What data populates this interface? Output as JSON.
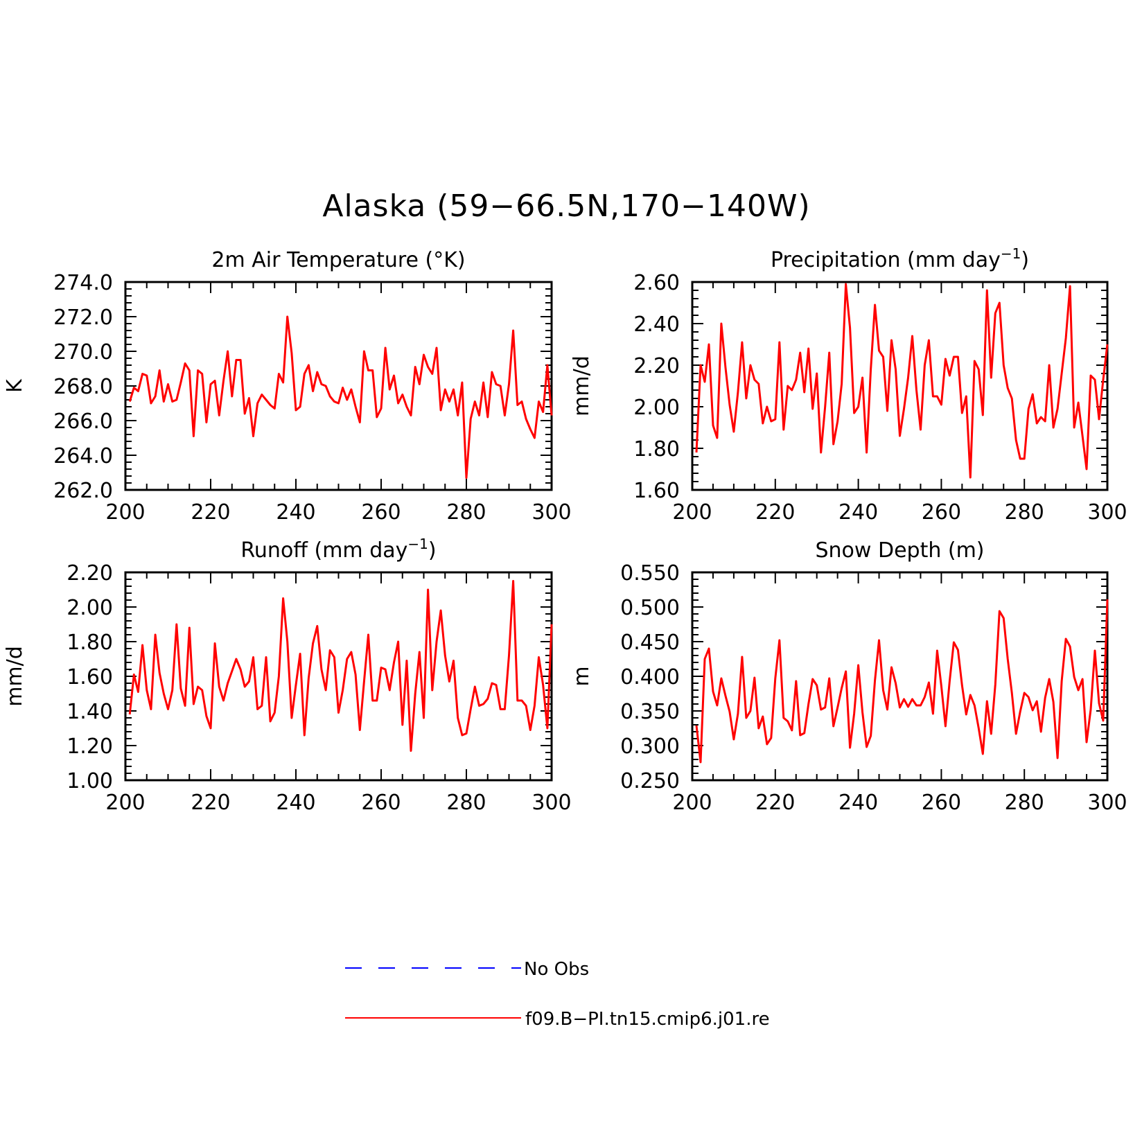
{
  "title": "Alaska (59−66.5N,170−140W)",
  "colors": {
    "model": "#ff0000",
    "obs": "#0000ff",
    "axis": "#000000"
  },
  "legend": [
    {
      "label": "No Obs",
      "color": "#0000ff",
      "style": "dashed"
    },
    {
      "label": "f09.B−PI.tn15.cmip6.j01.re",
      "color": "#ff0000",
      "style": "solid"
    }
  ],
  "chart_data": [
    {
      "type": "line",
      "title_main": "2m Air Temperature (°K)",
      "title_sup": "",
      "title_tail": "",
      "xlabel": "",
      "ylabel": "K",
      "xlim": [
        200,
        300
      ],
      "ylim": [
        262.0,
        274.0
      ],
      "xticks": [
        200,
        220,
        240,
        260,
        280,
        300
      ],
      "yticks": [
        "262.0",
        "264.0",
        "266.0",
        "268.0",
        "270.0",
        "272.0",
        "274.0"
      ],
      "x_start": 201,
      "series": [
        {
          "values": [
            267.1,
            267.9,
            267.7,
            268.7,
            268.6,
            267.0,
            267.4,
            268.9,
            267.1,
            268.1,
            267.1,
            267.2,
            268.2,
            269.3,
            268.9,
            265.1,
            268.9,
            268.7,
            265.9,
            268.1,
            268.3,
            266.3,
            268.3,
            270.0,
            267.4,
            269.5,
            269.5,
            266.4,
            267.3,
            265.1,
            267.0,
            267.5,
            267.2,
            266.9,
            266.7,
            268.7,
            268.2,
            272.0,
            269.9,
            266.6,
            266.8,
            268.7,
            269.2,
            267.7,
            268.8,
            268.1,
            268.0,
            267.4,
            267.1,
            267.0,
            267.9,
            267.2,
            267.8,
            266.8,
            265.9,
            270.0,
            268.9,
            268.9,
            266.2,
            266.7,
            270.2,
            267.8,
            268.6,
            267.0,
            267.5,
            266.8,
            266.3,
            269.1,
            268.1,
            269.8,
            269.1,
            268.7,
            270.2,
            266.6,
            267.8,
            267.1,
            267.8,
            266.3,
            268.2,
            262.7,
            266.1,
            267.1,
            266.3,
            268.2,
            266.2,
            268.8,
            268.1,
            268.0,
            266.3,
            268.1,
            271.2,
            266.9,
            267.1,
            266.1,
            265.5,
            265.0,
            267.1,
            266.5,
            269.2,
            266.3
          ]
        }
      ]
    },
    {
      "type": "line",
      "title_main": "Precipitation (mm day",
      "title_sup": "−1",
      "title_tail": ")",
      "xlabel": "",
      "ylabel": "mm/d",
      "xlim": [
        200,
        300
      ],
      "ylim": [
        1.6,
        2.6
      ],
      "xticks": [
        200,
        220,
        240,
        260,
        280,
        300
      ],
      "yticks": [
        "1.60",
        "1.80",
        "2.00",
        "2.20",
        "2.40",
        "2.60"
      ],
      "x_start": 201,
      "series": [
        {
          "values": [
            1.78,
            2.2,
            2.12,
            2.3,
            1.91,
            1.85,
            2.4,
            2.19,
            2.01,
            1.88,
            2.07,
            2.31,
            2.04,
            2.2,
            2.13,
            2.11,
            1.92,
            2.0,
            1.93,
            1.94,
            2.31,
            1.89,
            2.1,
            2.08,
            2.13,
            2.26,
            2.07,
            2.28,
            1.99,
            2.16,
            1.78,
            2.0,
            2.26,
            1.82,
            1.93,
            2.11,
            2.59,
            2.38,
            1.97,
            2.0,
            2.14,
            1.78,
            2.18,
            2.49,
            2.27,
            2.24,
            1.98,
            2.32,
            2.18,
            1.86,
            1.99,
            2.14,
            2.34,
            2.08,
            1.89,
            2.2,
            2.32,
            2.05,
            2.05,
            2.01,
            2.23,
            2.15,
            2.24,
            2.24,
            1.97,
            2.05,
            1.66,
            2.22,
            2.18,
            1.96,
            2.56,
            2.14,
            2.45,
            2.5,
            2.2,
            2.09,
            2.04,
            1.84,
            1.75,
            1.75,
            1.99,
            2.06,
            1.92,
            1.95,
            1.93,
            2.2,
            1.9,
            1.99,
            2.16,
            2.33,
            2.58,
            1.9,
            2.02,
            1.86,
            1.7,
            2.15,
            2.13,
            1.94,
            2.13,
            2.3
          ]
        }
      ]
    },
    {
      "type": "line",
      "title_main": "Runoff (mm day",
      "title_sup": "−1",
      "title_tail": ")",
      "xlabel": "",
      "ylabel": "mm/d",
      "xlim": [
        200,
        300
      ],
      "ylim": [
        1.0,
        2.2
      ],
      "xticks": [
        200,
        220,
        240,
        260,
        280,
        300
      ],
      "yticks": [
        "1.00",
        "1.20",
        "1.40",
        "1.60",
        "1.80",
        "2.00",
        "2.20"
      ],
      "x_start": 201,
      "series": [
        {
          "values": [
            1.38,
            1.61,
            1.51,
            1.78,
            1.52,
            1.41,
            1.84,
            1.62,
            1.5,
            1.41,
            1.52,
            1.9,
            1.53,
            1.43,
            1.88,
            1.44,
            1.54,
            1.52,
            1.37,
            1.3,
            1.79,
            1.54,
            1.46,
            1.56,
            1.63,
            1.7,
            1.64,
            1.54,
            1.57,
            1.71,
            1.41,
            1.43,
            1.71,
            1.34,
            1.39,
            1.6,
            2.05,
            1.8,
            1.36,
            1.55,
            1.73,
            1.26,
            1.59,
            1.79,
            1.89,
            1.64,
            1.52,
            1.75,
            1.71,
            1.39,
            1.52,
            1.7,
            1.74,
            1.61,
            1.29,
            1.57,
            1.84,
            1.46,
            1.46,
            1.65,
            1.64,
            1.52,
            1.68,
            1.8,
            1.32,
            1.69,
            1.17,
            1.5,
            1.74,
            1.36,
            2.1,
            1.52,
            1.8,
            1.98,
            1.72,
            1.57,
            1.69,
            1.36,
            1.26,
            1.27,
            1.41,
            1.54,
            1.43,
            1.44,
            1.47,
            1.56,
            1.55,
            1.41,
            1.41,
            1.72,
            2.15,
            1.46,
            1.46,
            1.43,
            1.29,
            1.43,
            1.71,
            1.55,
            1.3,
            1.9
          ]
        }
      ]
    },
    {
      "type": "line",
      "title_main": "Snow Depth (m)",
      "title_sup": "",
      "title_tail": "",
      "xlabel": "",
      "ylabel": "m",
      "xlim": [
        200,
        300
      ],
      "ylim": [
        0.25,
        0.55
      ],
      "xticks": [
        200,
        220,
        240,
        260,
        280,
        300
      ],
      "yticks": [
        "0.250",
        "0.300",
        "0.350",
        "0.400",
        "0.450",
        "0.500",
        "0.550"
      ],
      "x_start": 201,
      "series": [
        {
          "values": [
            0.329,
            0.276,
            0.425,
            0.44,
            0.378,
            0.358,
            0.397,
            0.372,
            0.349,
            0.309,
            0.346,
            0.428,
            0.34,
            0.35,
            0.398,
            0.325,
            0.342,
            0.302,
            0.311,
            0.397,
            0.452,
            0.34,
            0.335,
            0.322,
            0.393,
            0.315,
            0.318,
            0.36,
            0.396,
            0.387,
            0.352,
            0.355,
            0.397,
            0.328,
            0.355,
            0.383,
            0.407,
            0.297,
            0.346,
            0.416,
            0.348,
            0.298,
            0.314,
            0.394,
            0.452,
            0.38,
            0.352,
            0.413,
            0.39,
            0.355,
            0.367,
            0.356,
            0.367,
            0.358,
            0.358,
            0.37,
            0.391,
            0.346,
            0.437,
            0.386,
            0.328,
            0.393,
            0.449,
            0.438,
            0.387,
            0.345,
            0.373,
            0.358,
            0.325,
            0.288,
            0.364,
            0.317,
            0.388,
            0.494,
            0.484,
            0.425,
            0.376,
            0.317,
            0.349,
            0.376,
            0.37,
            0.351,
            0.364,
            0.32,
            0.369,
            0.396,
            0.363,
            0.282,
            0.393,
            0.454,
            0.443,
            0.399,
            0.38,
            0.396,
            0.305,
            0.352,
            0.437,
            0.361,
            0.336,
            0.511
          ]
        }
      ]
    }
  ]
}
